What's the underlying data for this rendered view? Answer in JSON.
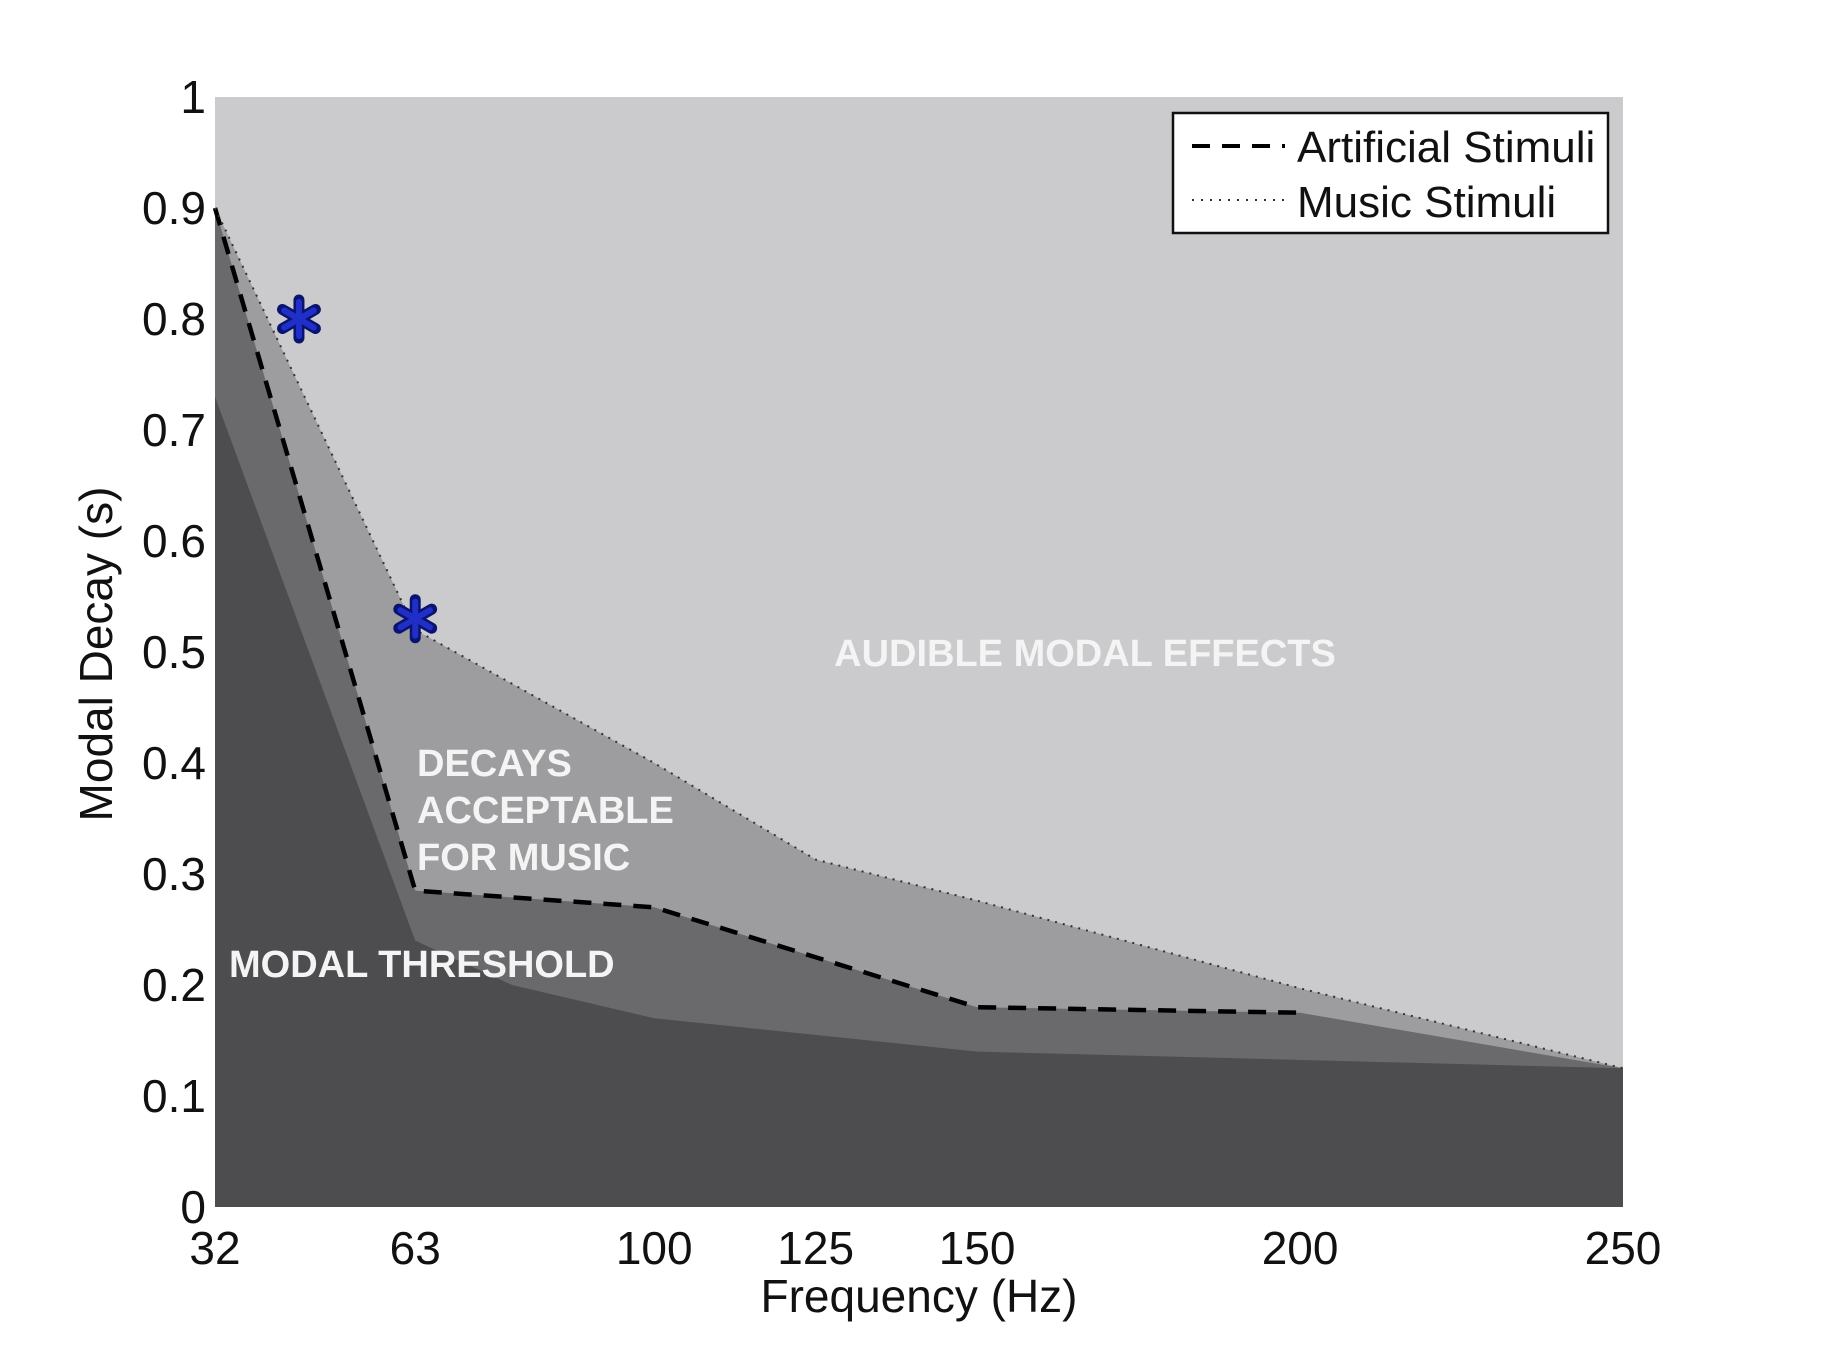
{
  "chart_data": {
    "type": "area",
    "title": "",
    "xlabel": "Frequency (Hz)",
    "ylabel": "Modal Decay (s)",
    "xlim": [
      32,
      250
    ],
    "ylim": [
      0,
      1
    ],
    "xticks": [
      32,
      63,
      100,
      125,
      150,
      200,
      250
    ],
    "yticks": [
      0,
      0.1,
      0.2,
      0.3,
      0.4,
      0.5,
      0.6,
      0.7,
      0.8,
      0.9,
      1
    ],
    "ytick_labels": [
      "0",
      "0.1",
      "0.2",
      "0.3",
      "0.4",
      "0.5",
      "0.6",
      "0.7",
      "0.8",
      "0.9",
      "1"
    ],
    "grid": false,
    "legend_position": "top-right",
    "series": [
      {
        "name": "Artificial Stimuli",
        "style": "dashed",
        "color": "#000000",
        "x": [
          32,
          63,
          100,
          125,
          150,
          200
        ],
        "y": [
          0.9,
          0.285,
          0.27,
          0.225,
          0.18,
          0.175
        ]
      },
      {
        "name": "Music Stimuli",
        "style": "dotted",
        "color": "#333333",
        "x": [
          32,
          63,
          100,
          125,
          150,
          200,
          250
        ],
        "y": [
          0.9,
          0.52,
          0.4,
          0.313,
          0.276,
          0.197,
          0.125
        ]
      }
    ],
    "regions": [
      {
        "label": "AUDIBLE MODAL EFFECTS",
        "color": "#cbcbcd"
      },
      {
        "label": "DECAYS ACCEPTABLE FOR MUSIC",
        "lines": [
          "DECAYS",
          "ACCEPTABLE",
          "FOR MUSIC"
        ],
        "color": "#9d9d9f"
      },
      {
        "label": "",
        "color": "#6a6a6c",
        "x": [
          32,
          63,
          100,
          125,
          150,
          200,
          250
        ],
        "y": [
          0.9,
          0.285,
          0.27,
          0.225,
          0.18,
          0.175,
          0.125
        ]
      },
      {
        "label": "MODAL THRESHOLD",
        "color": "#4d4d4f",
        "x": [
          32,
          63,
          78,
          100,
          150,
          250
        ],
        "y": [
          0.73,
          0.24,
          0.2,
          0.17,
          0.14,
          0.125
        ]
      }
    ],
    "markers": {
      "symbol": "asterisk",
      "color": "#1f2fc8",
      "x": [
        45,
        63
      ],
      "y": [
        0.8,
        0.53
      ]
    }
  }
}
